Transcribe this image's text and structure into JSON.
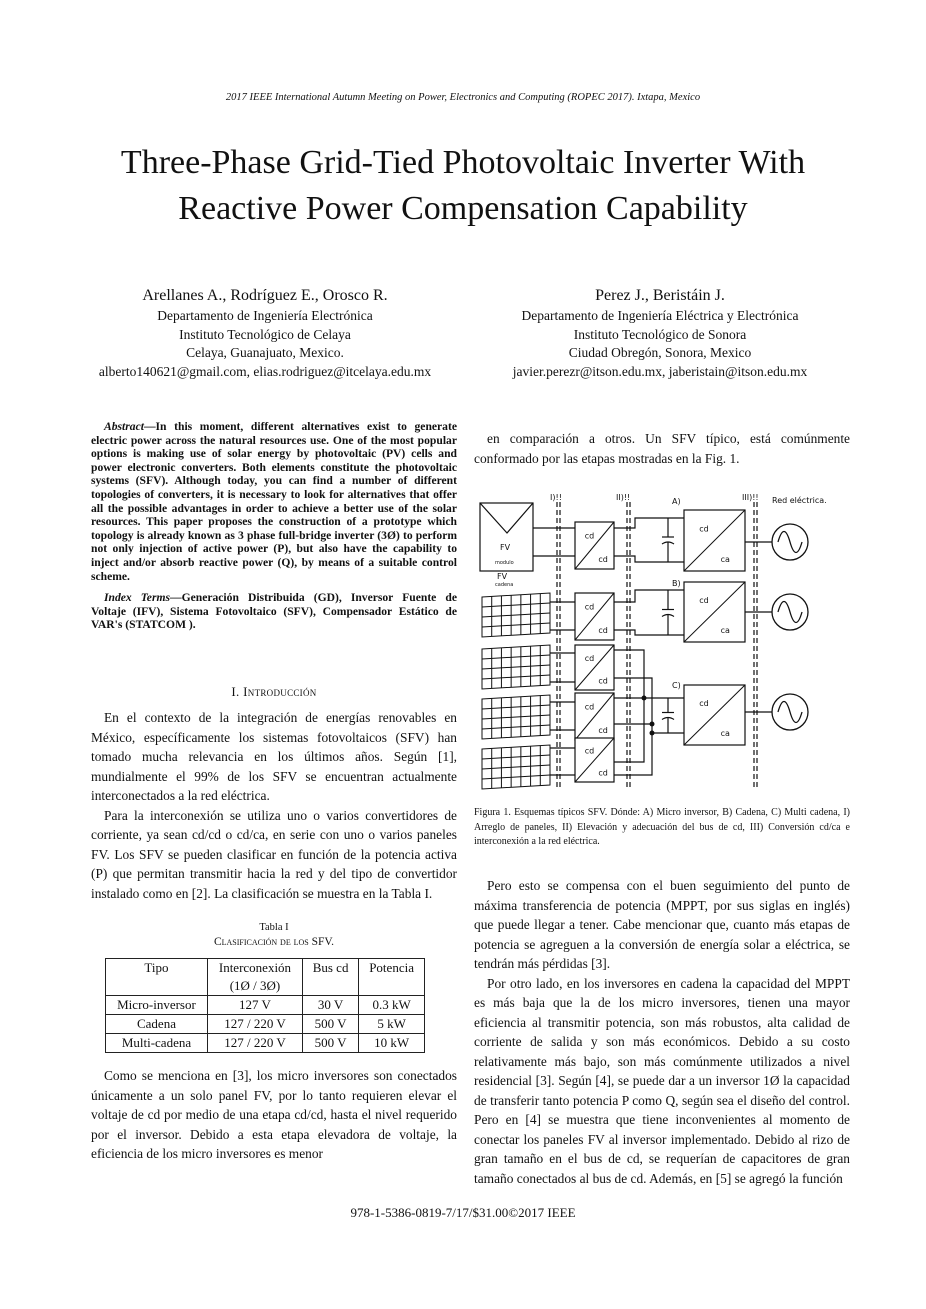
{
  "header": {
    "conference": "2017 IEEE International Autumn Meeting on Power, Electronics and Computing (ROPEC 2017). Ixtapa, Mexico"
  },
  "title": {
    "line1": "Three-Phase Grid-Tied Photovoltaic Inverter With",
    "line2": "Reactive Power Compensation Capability"
  },
  "authors": [
    {
      "names": "Arellanes A., Rodríguez E., Orosco R.",
      "dept": "Departamento de Ingeniería Electrónica",
      "inst": "Instituto Tecnológico de Celaya",
      "city": "Celaya, Guanajuato, Mexico.",
      "email": "alberto140621@gmail.com, elias.rodriguez@itcelaya.edu.mx"
    },
    {
      "names": "Perez J., Beristáin J.",
      "dept": "Departamento de Ingeniería Eléctrica y Electrónica",
      "inst": "Instituto Tecnológico de Sonora",
      "city": "Ciudad Obregón, Sonora, Mexico",
      "email": "javier.perezr@itson.edu.mx, jaberistain@itson.edu.mx"
    }
  ],
  "abstract": {
    "label": "Abstract",
    "text": "—In this moment, different alternatives exist to generate electric power across the natural resources use. One of the most popular options is making use of solar energy by photovoltaic (PV) cells and power electronic converters. Both elements constitute the photovoltaic systems (SFV). Although today, you can find a number of different topologies of converters, it is necessary to look for alternatives that offer all the possible advantages in order to achieve a better use of the solar resources. This paper proposes the construction of a prototype which topology is already known as 3 phase full-bridge inverter (3Ø) to perform not only injection of active power (P), but also have the capability to inject and/or absorb reactive power (Q), by means of a suitable control scheme.",
    "index_label": "Index Terms",
    "index_text": "—Generación Distribuida (GD), Inversor Fuente de Voltaje (IFV), Sistema Fotovoltaico (SFV), Compensador Estático de VAR's (STATCOM )."
  },
  "section1": {
    "heading": "I. Introducción",
    "p1": "En el contexto de la integración de energías renovables en México, específicamente los sistemas fotovoltaicos (SFV) han tomado mucha relevancia en los últimos años. Según [1], mundialmente el 99% de los SFV se encuentran actualmente interconectados a la red eléctrica.",
    "p2": "Para la interconexión se utiliza uno o varios convertidores de corriente, ya sean cd/cd o cd/ca, en serie con uno o varios paneles FV. Los SFV se pueden clasificar en función de la potencia activa (P) que permitan transmitir hacia la red y del tipo de convertidor instalado como en [2]. La clasificación se muestra en la Tabla I.",
    "p3": "Como se menciona en [3], los micro inversores son conectados únicamente a un solo panel FV, por lo tanto requieren elevar el voltaje de cd por medio de una etapa cd/cd, hasta el nivel requerido por el inversor. Debido a esta etapa elevadora de voltaje, la eficiencia de los micro inversores es menor"
  },
  "table": {
    "label": "Tabla I",
    "caption": "Clasificación de los SFV.",
    "headers": [
      "Tipo",
      "Interconexión",
      "Bus cd",
      "Potencia"
    ],
    "header_sub": "(1Ø / 3Ø)",
    "rows": [
      [
        "Micro-inversor",
        "127 V",
        "30 V",
        "0.3 kW"
      ],
      [
        "Cadena",
        "127 / 220 V",
        "500 V",
        "5 kW"
      ],
      [
        "Multi-cadena",
        "127 / 220 V",
        "500 V",
        "10 kW"
      ]
    ]
  },
  "right": {
    "p0": "en comparación a otros. Un SFV típico, está comúnmente conformado por las etapas mostradas en la Fig. 1.",
    "p1": "Pero esto se compensa con el buen seguimiento del punto de máxima transferencia de potencia (MPPT, por sus siglas en inglés) que puede llegar a tener. Cabe mencionar que, cuanto más etapas de potencia se agreguen a la conversión de energía solar a eléctrica, se tendrán más pérdidas [3].",
    "p2": "Por otro lado, en los inversores en cadena la capacidad del MPPT es más baja que la de los micro inversores, tienen una mayor eficiencia al transmitir potencia, son más robustos, alta calidad de corriente de salida y son más económicos. Debido a su costo relativamente más bajo, son más comúnmente utilizados a nivel residencial [3]. Según [4], se puede dar a un inversor 1Ø la capacidad de transferir tanto potencia P como Q, según sea el diseño del control. Pero en [4] se muestra que tiene inconvenientes al momento de conectar los paneles FV al inversor implementado. Debido al rizo de gran tamaño en el bus de cd, se requerían de capacitores de gran tamaño conectados al bus de cd. Además, en [5] se agregó la función"
  },
  "figure": {
    "labels": {
      "stage1": "I)!!",
      "stage2": "II)!!",
      "stage3": "III)!!",
      "grid": "Red eléctrica.",
      "a": "A)",
      "b": "B)",
      "c": "C)",
      "fv": "FV",
      "modulo": "modulo",
      "cadena": "cadena",
      "cd": "cd",
      "ca": "ca"
    },
    "caption": "Figura 1.  Esquemas típicos SFV. Dónde: A) Micro inversor, B) Cadena, C) Multi cadena, I) Arreglo de paneles, II) Elevación y adecuación del bus de cd, III) Conversión cd/ca e interconexión a la red eléctrica."
  },
  "footer": {
    "text": "978-1-5386-0819-7/17/$31.00©2017 IEEE"
  }
}
